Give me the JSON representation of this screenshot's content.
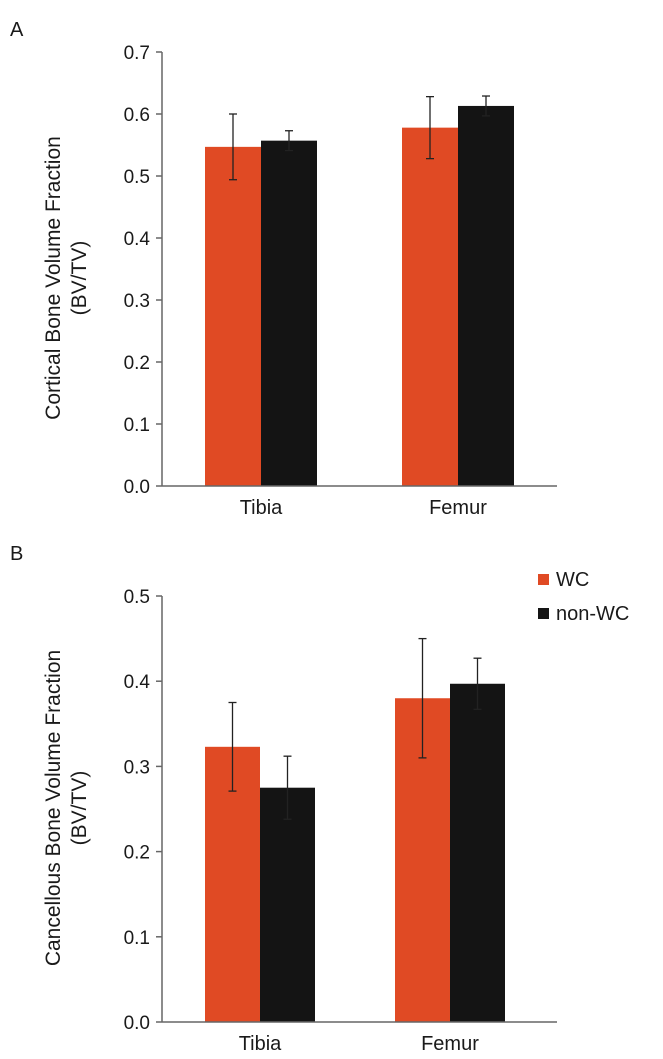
{
  "colors": {
    "wc": "#e04a24",
    "non_wc": "#141414"
  },
  "legend": {
    "placement": "top-right of panel B",
    "items": [
      {
        "label": "WC",
        "color": "#e04a24"
      },
      {
        "label": "non-WC",
        "color": "#141414"
      }
    ]
  },
  "chart_data": [
    {
      "panel": "A",
      "type": "bar",
      "title": "",
      "xlabel": "",
      "ylabel_line1": "Cortical Bone Volume Fraction",
      "ylabel_line2": "(BV/TV)",
      "categories": [
        "Tibia",
        "Femur"
      ],
      "ylim": [
        0.0,
        0.7
      ],
      "yticks": [
        0.0,
        0.1,
        0.2,
        0.3,
        0.4,
        0.5,
        0.6,
        0.7
      ],
      "ytick_labels": [
        "0.0",
        "0.1",
        "0.2",
        "0.3",
        "0.4",
        "0.5",
        "0.6",
        "0.7"
      ],
      "grid": false,
      "series": [
        {
          "name": "WC",
          "values": [
            0.547,
            0.578
          ],
          "errors": [
            0.053,
            0.05
          ]
        },
        {
          "name": "non-WC",
          "values": [
            0.557,
            0.613
          ],
          "errors": [
            0.016,
            0.016
          ]
        }
      ]
    },
    {
      "panel": "B",
      "type": "bar",
      "title": "",
      "xlabel": "",
      "ylabel_line1": "Cancellous Bone Volume Fraction",
      "ylabel_line2": "(BV/TV)",
      "categories": [
        "Tibia",
        "Femur"
      ],
      "ylim": [
        0.0,
        0.5
      ],
      "yticks": [
        0.0,
        0.1,
        0.2,
        0.3,
        0.4,
        0.5
      ],
      "ytick_labels": [
        "0.0",
        "0.1",
        "0.2",
        "0.3",
        "0.4",
        "0.5"
      ],
      "grid": false,
      "series": [
        {
          "name": "WC",
          "values": [
            0.323,
            0.38
          ],
          "errors": [
            0.052,
            0.07
          ]
        },
        {
          "name": "non-WC",
          "values": [
            0.275,
            0.397
          ],
          "errors": [
            0.037,
            0.03
          ]
        }
      ]
    }
  ]
}
